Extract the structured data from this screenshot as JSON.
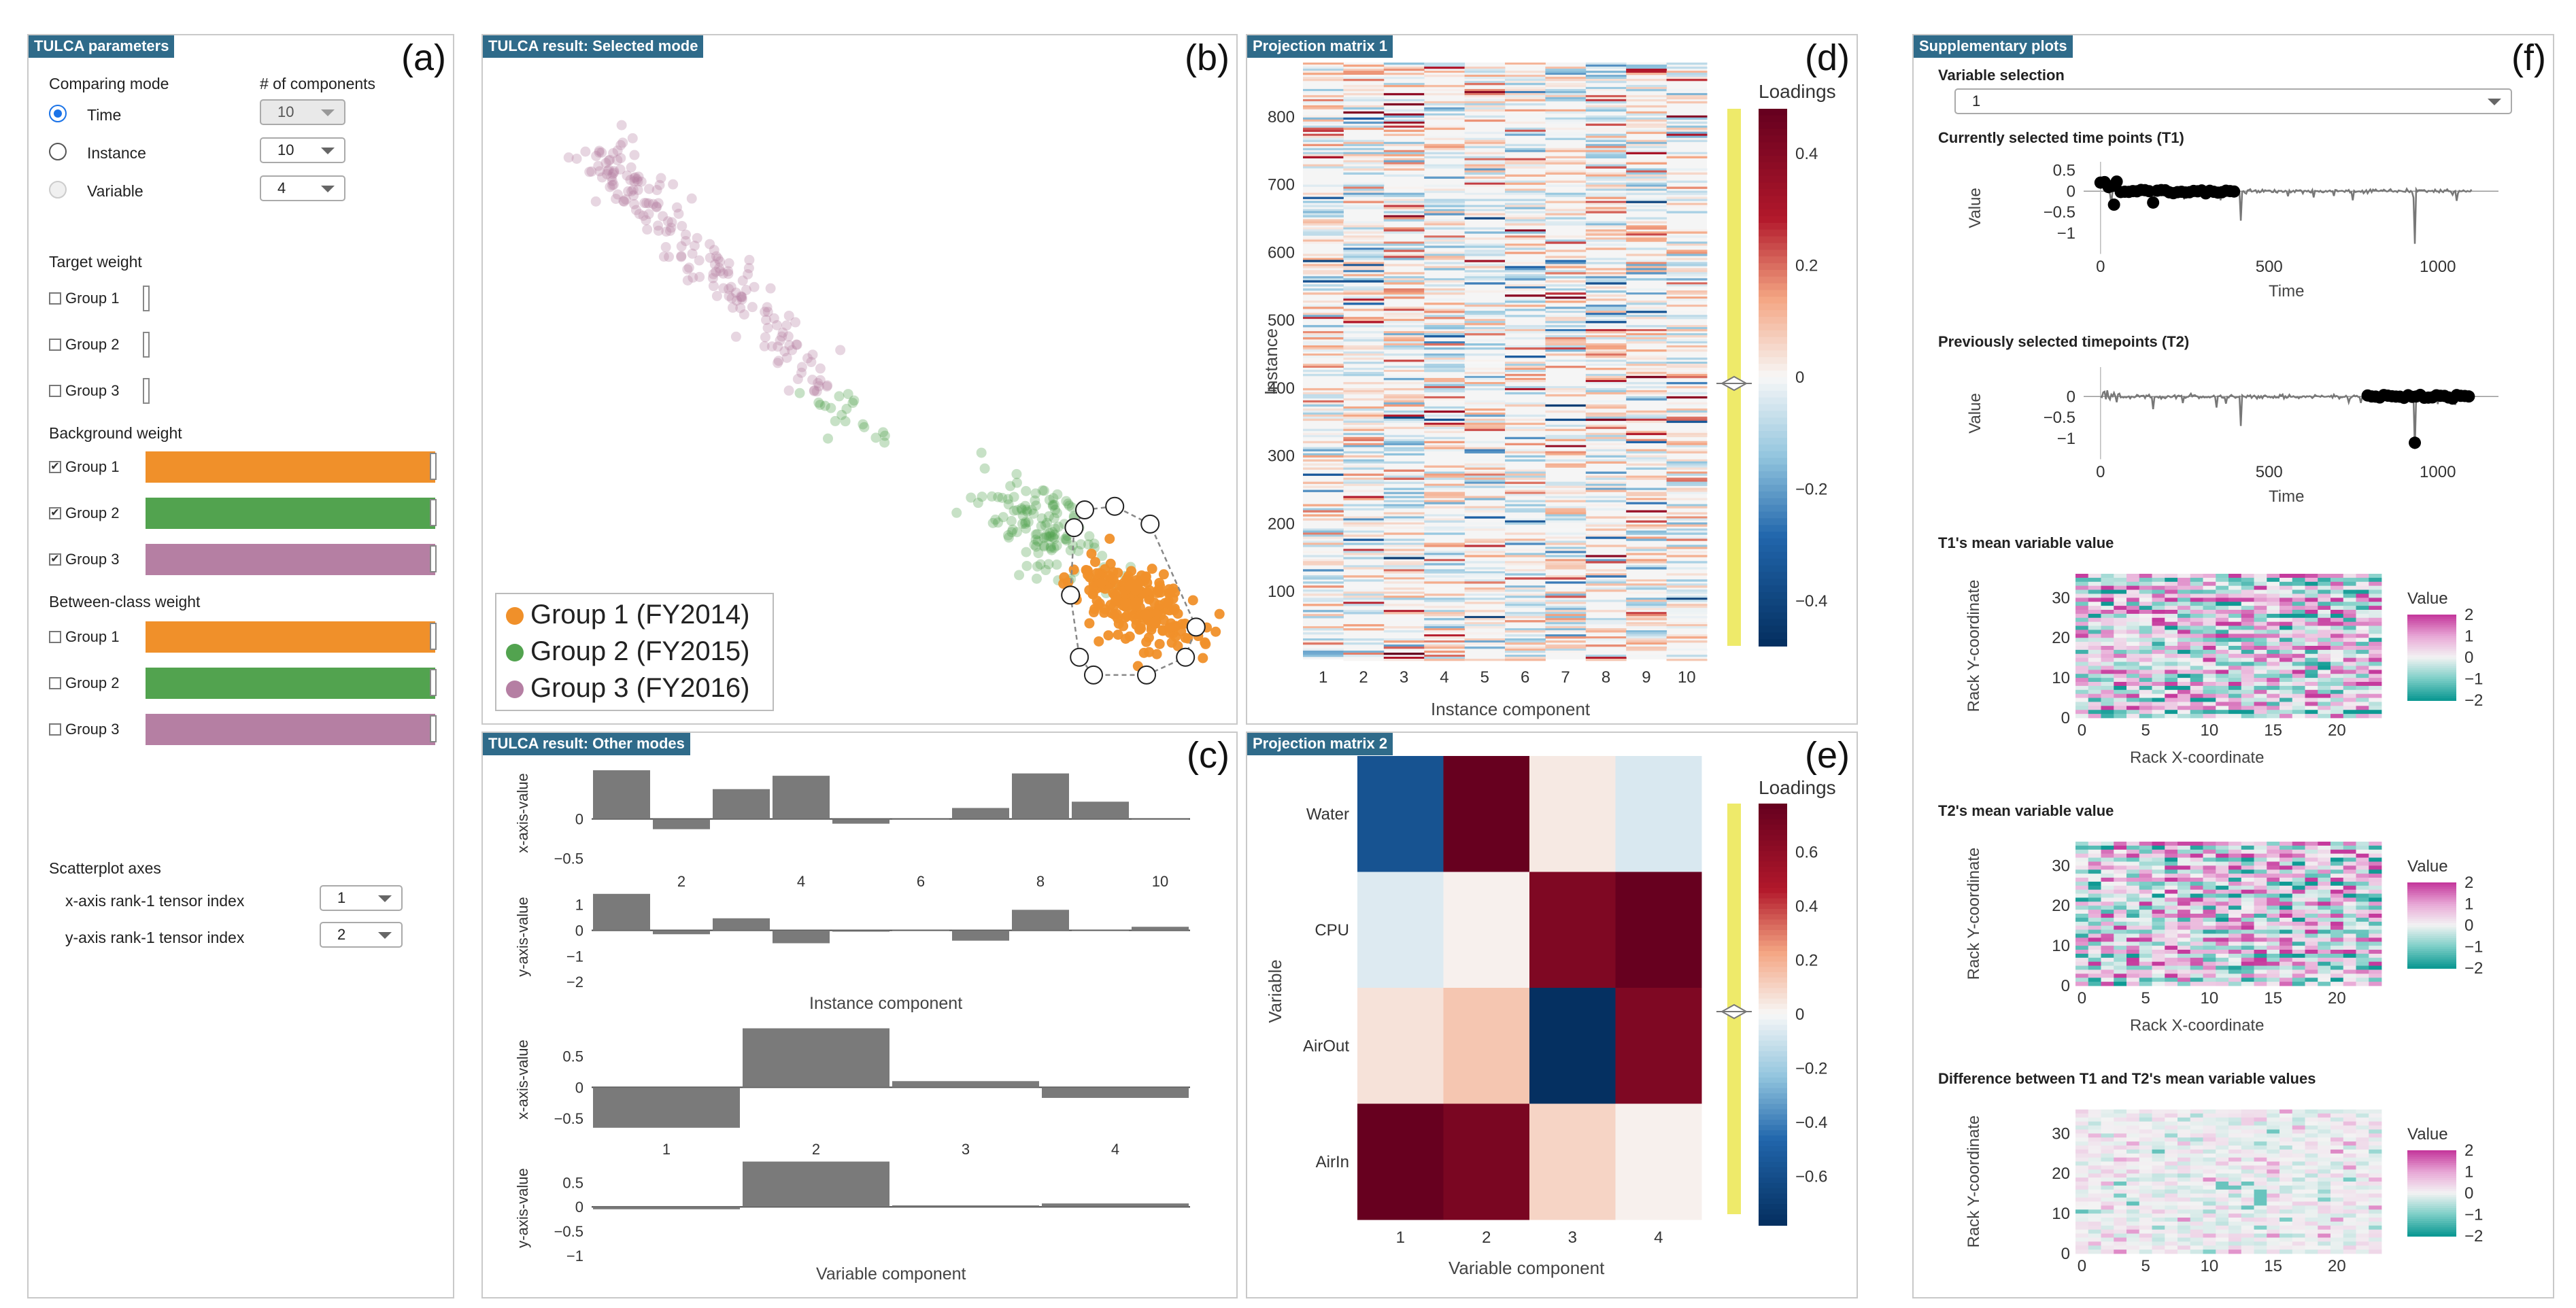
{
  "panel_a": {
    "title": "TULCA parameters",
    "letter": "(a)",
    "comparing_mode_label": "Comparing mode",
    "num_components_label": "# of components",
    "modes": [
      {
        "label": "Time",
        "state": "selected",
        "components": "10"
      },
      {
        "label": "Instance",
        "state": "unselected",
        "components": "10"
      },
      {
        "label": "Variable",
        "state": "disabled",
        "components": "4"
      }
    ],
    "target_weight_label": "Target weight",
    "target_groups": [
      {
        "label": "Group 1",
        "checked": false,
        "checkmark": ""
      },
      {
        "label": "Group 2",
        "checked": false,
        "checkmark": ""
      },
      {
        "label": "Group 3",
        "checked": false,
        "checkmark": ""
      }
    ],
    "background_weight_label": "Background weight",
    "background_groups": [
      {
        "label": "Group 1",
        "checked": true,
        "checkmark": "✔",
        "color": "#f0902a"
      },
      {
        "label": "Group 2",
        "checked": true,
        "checkmark": "✔",
        "color": "#52a34f"
      },
      {
        "label": "Group 3",
        "checked": true,
        "checkmark": "✔",
        "color": "#b57fa3"
      }
    ],
    "between_class_label": "Between-class weight",
    "between_groups": [
      {
        "label": "Group 1",
        "checked": false,
        "checkmark": "",
        "color": "#f0902a"
      },
      {
        "label": "Group 2",
        "checked": false,
        "checkmark": "",
        "color": "#52a34f"
      },
      {
        "label": "Group 3",
        "checked": false,
        "checkmark": "",
        "color": "#b57fa3"
      }
    ],
    "scatter_axes_label": "Scatterplot axes",
    "x_axis_label": "x-axis rank-1 tensor index",
    "x_axis_value": "1",
    "y_axis_label": "y-axis rank-1 tensor index",
    "y_axis_value": "2"
  },
  "panel_b": {
    "title": "TULCA result: Selected mode",
    "letter": "(b)",
    "legend": [
      {
        "label": "Group 1 (FY2014)",
        "color": "#f0902a"
      },
      {
        "label": "Group 2 (FY2015)",
        "color": "#52a34f"
      },
      {
        "label": "Group 3 (FY2016)",
        "color": "#b57fa3"
      }
    ]
  },
  "panel_c": {
    "title": "TULCA result: Other modes",
    "letter": "(c)",
    "instance_xlabel": "Instance component",
    "variable_xlabel": "Variable component",
    "x_axis_value_label": "x-axis-value",
    "y_axis_value_label": "y-axis-value"
  },
  "panel_d": {
    "title": "Projection matrix 1",
    "letter": "(d)"
  },
  "panel_e": {
    "title": "Projection matrix 2",
    "letter": "(e)"
  },
  "panel_f": {
    "title": "Supplementary plots",
    "letter": "(f)",
    "variable_selection_label": "Variable selection",
    "variable_selection_value": "1",
    "t1_title": "Currently selected time points (T1)",
    "t2_title": "Previously selected timepoints (T2)",
    "t1_heat_title": "T1's mean variable value",
    "t2_heat_title": "T2's mean variable value",
    "diff_heat_title": "Difference between T1 and T2's mean variable values"
  },
  "chart_data": [
    {
      "id": "scatter_selected_mode",
      "type": "scatter",
      "series": [
        {
          "name": "Group 1 (FY2014)",
          "color": "#f0902a",
          "cluster_center": [
            1.55,
            -1.05
          ],
          "spread": [
            0.17,
            0.11
          ],
          "count": 220
        },
        {
          "name": "Group 2 (FY2015)",
          "color": "#52a34f",
          "cluster_center": [
            1.0,
            -0.62
          ],
          "spread": [
            0.18,
            0.12
          ],
          "count": 150
        },
        {
          "name": "Group 3 (FY2016)",
          "color": "#b57fa3",
          "cluster_center": [
            -1.0,
            1.2
          ],
          "spread": [
            0.35,
            0.3
          ],
          "count": 190
        }
      ],
      "selection_lasso": true
    },
    {
      "id": "instance_x_bars",
      "type": "bar",
      "ylabel": "x-axis-value",
      "ylim": [
        -0.6,
        0.75
      ],
      "categories": [
        1,
        2,
        3,
        4,
        5,
        6,
        7,
        8,
        9,
        10
      ],
      "tick_labels": [
        "2",
        "4",
        "6",
        "8",
        "10"
      ],
      "values": [
        0.62,
        -0.13,
        0.38,
        0.55,
        -0.06,
        0.0,
        0.14,
        0.58,
        0.22,
        0.0
      ],
      "yticks": [
        "0",
        "−0.5"
      ]
    },
    {
      "id": "instance_y_bars",
      "type": "bar",
      "ylabel": "y-axis-value",
      "ylim": [
        -2.1,
        1.6
      ],
      "categories": [
        1,
        2,
        3,
        4,
        5,
        6,
        7,
        8,
        9,
        10
      ],
      "values": [
        1.42,
        -0.15,
        0.47,
        -0.5,
        -0.05,
        -0.02,
        -0.4,
        0.8,
        0.0,
        0.14
      ],
      "yticks": [
        "1",
        "0",
        "−1",
        "−2"
      ],
      "xlabel": "Instance component"
    },
    {
      "id": "variable_x_bars",
      "type": "bar",
      "ylabel": "x-axis-value",
      "ylim": [
        -0.75,
        1.0
      ],
      "categories": [
        "1",
        "2",
        "3",
        "4"
      ],
      "values": [
        -0.65,
        0.95,
        0.1,
        -0.17
      ],
      "yticks": [
        "0.5",
        "0",
        "−0.5"
      ]
    },
    {
      "id": "variable_y_bars",
      "type": "bar",
      "ylabel": "y-axis-value",
      "ylim": [
        -1.1,
        1.05
      ],
      "categories": [
        "1",
        "2",
        "3",
        "4"
      ],
      "values": [
        -0.05,
        0.93,
        0.03,
        0.07
      ],
      "yticks": [
        "0.5",
        "0",
        "−0.5",
        "−1"
      ],
      "xlabel": "Variable component"
    },
    {
      "id": "projection_matrix_1",
      "type": "heatmap",
      "xlabel": "Instance component",
      "ylabel": "Instance",
      "x_categories": [
        "1",
        "2",
        "3",
        "4",
        "5",
        "6",
        "7",
        "8",
        "9",
        "10"
      ],
      "y_ticks": [
        "100",
        "200",
        "300",
        "400",
        "500",
        "600",
        "700",
        "800"
      ],
      "colorbar": {
        "title": "Loadings",
        "ticks": [
          "0.4",
          "0.2",
          "0",
          "−0.2",
          "−0.4"
        ],
        "range": [
          -0.48,
          0.48
        ]
      }
    },
    {
      "id": "projection_matrix_2",
      "type": "heatmap",
      "xlabel": "Variable component",
      "ylabel": "Variable",
      "x_categories": [
        "1",
        "2",
        "3",
        "4"
      ],
      "y_categories": [
        "Water",
        "CPU",
        "AirOut",
        "AirIn"
      ],
      "values": [
        [
          -0.58,
          0.78,
          0.04,
          -0.07
        ],
        [
          -0.06,
          0.02,
          0.68,
          0.78
        ],
        [
          0.06,
          0.14,
          -0.78,
          0.68
        ],
        [
          0.78,
          0.7,
          0.1,
          0.02
        ]
      ],
      "colorbar": {
        "title": "Loadings",
        "ticks": [
          "0.6",
          "0.4",
          "0.2",
          "0",
          "−0.2",
          "−0.4",
          "−0.6"
        ],
        "range": [
          -0.78,
          0.78
        ]
      }
    },
    {
      "id": "t1_timeseries",
      "type": "line",
      "xlabel": "Time",
      "ylabel": "Value",
      "xlim": [
        -50,
        1180
      ],
      "ylim": [
        -1.5,
        0.7
      ],
      "xticks": [
        "0",
        "500",
        "1000"
      ],
      "yticks": [
        "0.5",
        "0",
        "−0.5",
        "−1"
      ],
      "highlight_range": [
        0,
        400
      ]
    },
    {
      "id": "t2_timeseries",
      "type": "line",
      "xlabel": "Time",
      "ylabel": "Value",
      "xlim": [
        -50,
        1180
      ],
      "ylim": [
        -1.5,
        0.7
      ],
      "xticks": [
        "0",
        "500",
        "1000"
      ],
      "yticks": [
        "0",
        "−0.5",
        "−1"
      ],
      "highlight_range": [
        790,
        1100
      ]
    },
    {
      "id": "t1_mean_heatmap",
      "type": "heatmap",
      "xlabel": "Rack X-coordinate",
      "ylabel": "Rack Y-coordinate",
      "xticks": [
        "0",
        "5",
        "10",
        "15",
        "20"
      ],
      "yticks": [
        "0",
        "10",
        "20",
        "30"
      ],
      "colorbar": {
        "title": "Value",
        "ticks": [
          "2",
          "1",
          "0",
          "−1",
          "−2"
        ]
      }
    },
    {
      "id": "t2_mean_heatmap",
      "type": "heatmap",
      "xlabel": "Rack X-coordinate",
      "ylabel": "Rack Y-coordinate",
      "xticks": [
        "0",
        "5",
        "10",
        "15",
        "20"
      ],
      "yticks": [
        "0",
        "10",
        "20",
        "30"
      ],
      "colorbar": {
        "title": "Value",
        "ticks": [
          "2",
          "1",
          "0",
          "−1",
          "−2"
        ]
      }
    },
    {
      "id": "diff_heatmap",
      "type": "heatmap",
      "ylabel": "Rack Y-coordinate",
      "xticks": [
        "0",
        "5",
        "10",
        "15",
        "20"
      ],
      "yticks": [
        "0",
        "10",
        "20",
        "30"
      ],
      "colorbar": {
        "title": "Value",
        "ticks": [
          "2",
          "1",
          "0",
          "−1",
          "−2"
        ]
      }
    }
  ]
}
